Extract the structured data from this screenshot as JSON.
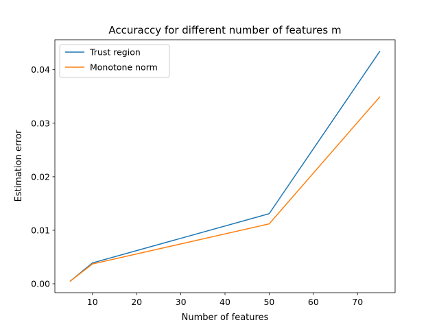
{
  "chart_data": {
    "type": "line",
    "title": "Accuraccy for different number of features m",
    "xlabel": "Number of features",
    "ylabel": "Estimation error",
    "x": [
      5,
      10,
      50,
      75
    ],
    "series": [
      {
        "name": "Trust region",
        "values": [
          0.0005,
          0.0039,
          0.0131,
          0.0434
        ],
        "color": "#1f77b4"
      },
      {
        "name": "Monotone norm",
        "values": [
          0.0005,
          0.0037,
          0.0112,
          0.0349
        ],
        "color": "#ff7f0e"
      }
    ],
    "xlim": [
      1.5,
      78.5
    ],
    "ylim": [
      -0.00166,
      0.0456
    ],
    "xticks": [
      10,
      20,
      30,
      40,
      50,
      60,
      70
    ],
    "yticks": [
      0.0,
      0.01,
      0.02,
      0.03,
      0.04
    ],
    "xtick_labels": [
      "10",
      "20",
      "30",
      "40",
      "50",
      "60",
      "70"
    ],
    "ytick_labels": [
      "0.00",
      "0.01",
      "0.02",
      "0.03",
      "0.04"
    ],
    "grid": false,
    "legend_position": "top-left"
  }
}
